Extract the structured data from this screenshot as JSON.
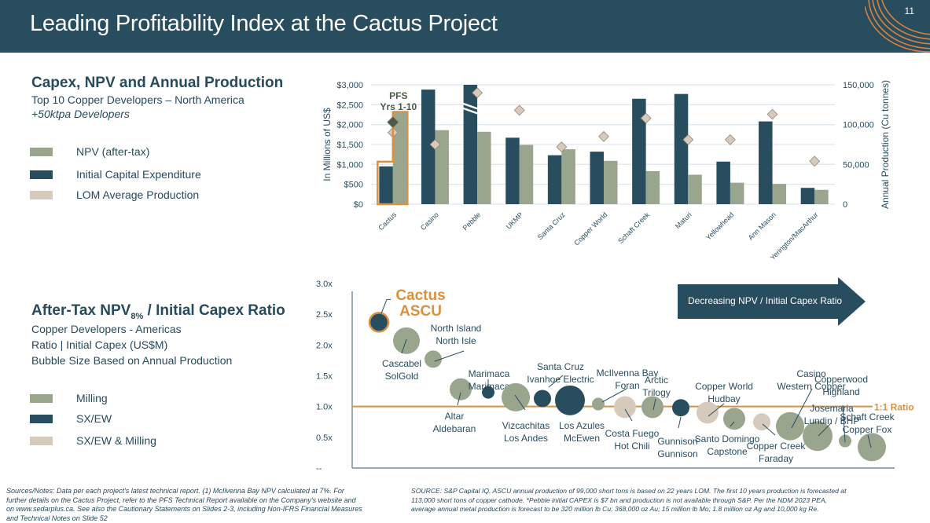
{
  "header": {
    "title": "Leading Profitability Index at the Cactus Project",
    "page_number": "11"
  },
  "top_section": {
    "title": "Capex, NPV and Annual Production",
    "subtitle": "Top 10 Copper Developers – North America",
    "subtitle_italic": "+50ktpa Developers",
    "legend": [
      {
        "label": "NPV (after-tax)",
        "color": "#9aa58d"
      },
      {
        "label": "Initial Capital Expenditure",
        "color": "#284d5e"
      },
      {
        "label": "LOM Average Production",
        "color": "#d6cabc"
      }
    ]
  },
  "bottom_section": {
    "title_main": "After-Tax NPV",
    "title_sub": "8%",
    "title_rest": " / Initial Capex Ratio",
    "lines": [
      "Copper Developers  - Americas",
      "Ratio | Initial Capex (US$M)",
      "Bubble Size Based on Annual Production"
    ],
    "legend": [
      {
        "label": "Milling",
        "color": "#9aa58d"
      },
      {
        "label": "SX/EW",
        "color": "#284d5e"
      },
      {
        "label": "SX/EW & Milling",
        "color": "#d6cabc"
      }
    ],
    "arrow_label": "Decreasing NPV / Initial Capex Ratio"
  },
  "notes": {
    "left": [
      "Sources/Notes: Data per each project's latest technical report. (1) McIlvenna Bay NPV calculated at 7%. For",
      "further details on the Cactus Project, refer to the PFS Technical Report available on the Company's website and",
      "on www.sedarplus.ca. See also the Cautionary Statements on Slides 2-3, including Non-IFRS Financial Measures",
      "and Technical Notes on Slide 52"
    ],
    "right": [
      "SOURCE: S&P Capital IQ, ASCU annual production of 99,000 short tons is based on 22 years LOM. The first 10 years production is forecasted at",
      "113,000 short tons of copper cathode. *Pebble initial CAPEX is $7 bn and production is not available through S&P. Per the NDM 2023 PEA,",
      "average annual metal production is forecast to be 320 million lb Cu; 368,000 oz Au; 15 million lb Mo;  1.8 million oz Ag and 10,000 kg Re."
    ]
  },
  "colors": {
    "navy": "#284d5e",
    "sage": "#9aa58d",
    "beige": "#d6cabc",
    "orange": "#d9913f",
    "grid": "#dfe8ee"
  },
  "chart_data": [
    {
      "type": "bar",
      "title": "Capex, NPV and Annual Production",
      "categories": [
        "Cactus",
        "Casino",
        "Pebble",
        "UKMP",
        "Santa Cruz",
        "Copper World",
        "Schaft Creek",
        "Maturi",
        "Yellowhead",
        "Ann Mason",
        "Yerington/MacArthur"
      ],
      "ylabel": "In Millions of US$",
      "y2label": "Annual Production (Cu tonnes)",
      "ylim": [
        0,
        3000
      ],
      "y2lim": [
        0,
        150000
      ],
      "yticks": [
        "$0",
        "$500",
        "$1,000",
        "$1,500",
        "$2,000",
        "$2,500",
        "$3,000"
      ],
      "y2ticks": [
        "0",
        "50,000",
        "100,000",
        "150,000"
      ],
      "series": [
        {
          "name": "Initial Capital Expenditure",
          "axis": "left",
          "values": [
            950,
            2880,
            3000,
            1670,
            1230,
            1320,
            2650,
            2770,
            1070,
            2080,
            410
          ]
        },
        {
          "name": "NPV (after-tax)",
          "axis": "left",
          "values": [
            2300,
            1860,
            1820,
            1490,
            1380,
            1090,
            830,
            740,
            540,
            510,
            360
          ]
        },
        {
          "name": "LOM Average Production",
          "axis": "right",
          "values": [
            90000,
            75000,
            140000,
            118000,
            72000,
            85000,
            108000,
            81000,
            81000,
            113000,
            54000
          ]
        }
      ],
      "annotations": {
        "pfs_label_1": "PFS",
        "pfs_label_2": "Yrs 1-10",
        "pfs_production": 103000,
        "broken_bar": "Pebble"
      },
      "grid": true
    },
    {
      "type": "scatter",
      "title": "After-Tax NPV8% / Initial Capex Ratio",
      "ylim": [
        0,
        3.0
      ],
      "yticks": [
        "--",
        "0.5x",
        "1.0x",
        "1.5x",
        "2.0x",
        "2.5x",
        "3.0x"
      ],
      "reference_line": {
        "value": 1.0,
        "label": "1:1 Ratio"
      },
      "highlight_label": [
        "Cactus",
        "ASCU"
      ],
      "points": [
        {
          "name": [
            "",
            ""
          ],
          "rank": 1,
          "ratio": 2.37,
          "size": 3,
          "type": "SX/EW",
          "highlight": true
        },
        {
          "name": [
            "Cascabel",
            "SolGold"
          ],
          "rank": 2,
          "ratio": 2.07,
          "size": 5,
          "type": "Milling"
        },
        {
          "name": [
            "North Island",
            "North Isle"
          ],
          "rank": 3,
          "ratio": 1.77,
          "size": 3,
          "type": "Milling"
        },
        {
          "name": [
            "Altar",
            "Aldebaran"
          ],
          "rank": 4,
          "ratio": 1.28,
          "size": 4,
          "type": "Milling"
        },
        {
          "name": [
            "Marimaca",
            "Marimaca"
          ],
          "rank": 5,
          "ratio": 1.23,
          "size": 2,
          "type": "SX/EW"
        },
        {
          "name": [
            "Vizcachitas",
            "Los Andes"
          ],
          "rank": 6,
          "ratio": 1.15,
          "size": 5,
          "type": "Milling"
        },
        {
          "name": [
            "Santa Cruz",
            "Ivanhoe Electric"
          ],
          "rank": 7,
          "ratio": 1.13,
          "size": 3,
          "type": "SX/EW"
        },
        {
          "name": [
            "Los Azules",
            "McEwen"
          ],
          "rank": 8,
          "ratio": 1.1,
          "size": 5,
          "type": "SX/EW"
        },
        {
          "name": [
            "McIlvenna Bay",
            "Foran"
          ],
          "rank": 9,
          "ratio": 1.04,
          "size": 2,
          "type": "Milling"
        },
        {
          "name": [
            "Costa Fuego",
            "Hot Chili"
          ],
          "rank": 10,
          "ratio": 0.99,
          "size": 4,
          "type": "SX/EW & Milling"
        },
        {
          "name": [
            "Arctic",
            "Trilogy"
          ],
          "rank": 11,
          "ratio": 0.99,
          "size": 4,
          "type": "Milling"
        },
        {
          "name": [
            "Gunnison",
            "Gunnison"
          ],
          "rank": 12,
          "ratio": 0.98,
          "size": 3,
          "type": "SX/EW"
        },
        {
          "name": [
            "Copper World",
            "Hudbay"
          ],
          "rank": 13,
          "ratio": 0.9,
          "size": 4,
          "type": "SX/EW & Milling"
        },
        {
          "name": [
            "Santo Domingo",
            "Capstone"
          ],
          "rank": 14,
          "ratio": 0.8,
          "size": 4,
          "type": "Milling"
        },
        {
          "name": [
            "Copper Creek",
            "Faraday"
          ],
          "rank": 15,
          "ratio": 0.75,
          "size": 3,
          "type": "SX/EW & Milling"
        },
        {
          "name": [
            "Casino",
            "Western Copper"
          ],
          "rank": 16,
          "ratio": 0.68,
          "size": 5,
          "type": "Milling"
        },
        {
          "name": [
            "Josemaria",
            "Lundin / BHP"
          ],
          "rank": 17,
          "ratio": 0.52,
          "size": 5,
          "type": "Milling"
        },
        {
          "name": [
            "Copperwood",
            "Highland"
          ],
          "rank": 18,
          "ratio": 0.44,
          "size": 2,
          "type": "Milling"
        },
        {
          "name": [
            "Schaft Creek",
            "Copper Fox"
          ],
          "rank": 19,
          "ratio": 0.34,
          "size": 5,
          "type": "Milling"
        }
      ]
    }
  ]
}
